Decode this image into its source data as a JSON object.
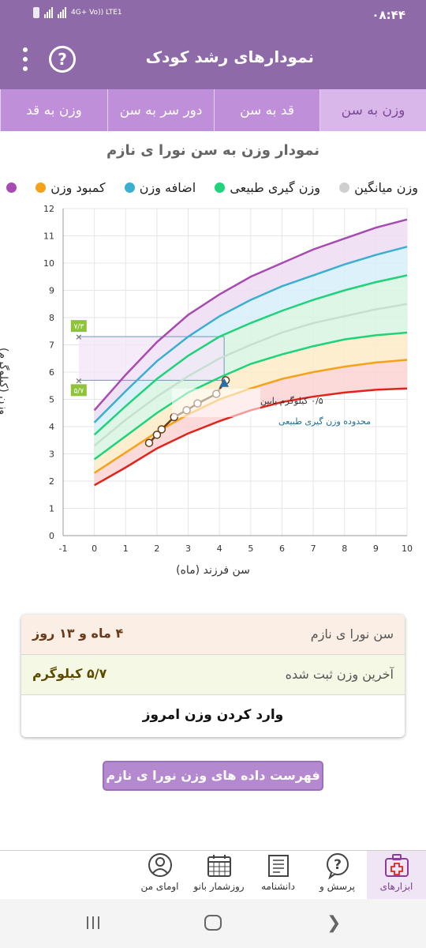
{
  "status": {
    "time": "۰۸:۴۴",
    "network": "4G+ Vo)) LTE1"
  },
  "toolbar": {
    "title": "نمودارهای رشد کودک"
  },
  "tabs": [
    {
      "label": "وزن به سن",
      "active": true
    },
    {
      "label": "قد به سن",
      "active": false
    },
    {
      "label": "دور سر به سن",
      "active": false
    },
    {
      "label": "وزن به قد",
      "active": false
    }
  ],
  "chart_title": "نمودار وزن به سن نورا ی نازم",
  "legend": [
    {
      "label": "کمبود وزن",
      "color": "#f5a21b"
    },
    {
      "label": "اضافه وزن",
      "color": "#3aafd0"
    },
    {
      "label": "وزن گیری طبیعی",
      "color": "#1ed37a"
    },
    {
      "label": "وزن میانگین",
      "color": "#cfcfcf"
    }
  ],
  "legend_extra": {
    "label": "",
    "color": "#a64bb0"
  },
  "chart_data": {
    "type": "line",
    "xlabel": "سن فرزند (ماه)",
    "ylabel": "وزن (کیلوگرم)",
    "xlim": [
      -1,
      10
    ],
    "ylim": [
      0,
      12
    ],
    "x_ticks": [
      "-1",
      "0",
      "1",
      "2",
      "3",
      "4",
      "5",
      "6",
      "7",
      "8",
      "9",
      "10"
    ],
    "y_ticks": [
      "0",
      "1",
      "2",
      "3",
      "4",
      "5",
      "6",
      "7",
      "8",
      "9",
      "10",
      "11",
      "12"
    ],
    "x": [
      0,
      1,
      2,
      3,
      4,
      5,
      6,
      7,
      8,
      9,
      10
    ],
    "series": [
      {
        "values": [
          1.85,
          2.5,
          3.2,
          3.75,
          4.2,
          4.6,
          4.9,
          5.1,
          5.25,
          5.35,
          5.4
        ],
        "color": "#e2231a"
      },
      {
        "values": [
          2.3,
          3.05,
          3.8,
          4.45,
          5.0,
          5.4,
          5.75,
          6.0,
          6.2,
          6.35,
          6.45
        ],
        "color": "#f5a21b"
      },
      {
        "values": [
          2.8,
          3.65,
          4.5,
          5.25,
          5.8,
          6.3,
          6.65,
          6.95,
          7.2,
          7.35,
          7.45
        ],
        "color": "#1ed37a"
      },
      {
        "values": [
          3.3,
          4.25,
          5.1,
          5.85,
          6.5,
          7.0,
          7.45,
          7.8,
          8.05,
          8.3,
          8.5
        ],
        "color": "#c5e0d0"
      },
      {
        "values": [
          3.7,
          4.75,
          5.75,
          6.6,
          7.3,
          7.8,
          8.25,
          8.65,
          9.0,
          9.3,
          9.55
        ],
        "color": "#1ed37a"
      },
      {
        "values": [
          4.15,
          5.3,
          6.4,
          7.3,
          8.05,
          8.65,
          9.15,
          9.55,
          9.95,
          10.3,
          10.6
        ],
        "color": "#3aafd0"
      },
      {
        "values": [
          4.6,
          5.9,
          7.1,
          8.1,
          8.85,
          9.5,
          10.0,
          10.5,
          10.9,
          11.3,
          11.6
        ],
        "color": "#a64bb0"
      }
    ],
    "measurements": {
      "x": [
        1.75,
        2.0,
        2.15,
        2.55,
        2.95,
        3.3,
        3.9,
        4.2
      ],
      "y": [
        3.4,
        3.7,
        3.9,
        4.35,
        4.6,
        4.85,
        5.2,
        5.7
      ]
    },
    "current_point": {
      "x": 4.15,
      "y": 5.6
    },
    "range_marks": [
      {
        "y": 7.3,
        "label": "۷/۳"
      },
      {
        "y": 5.7,
        "label": "۵/۷"
      }
    ],
    "annotation_lines": [
      "۰/۵ کیلوگرم پایین",
      "محدوده وزن گیری طبیعی"
    ]
  },
  "info": {
    "age_label": "سن نورا ی نازم",
    "age_value": "۴ ماه و ۱۳ روز",
    "weight_label": "آخرین وزن ثبت شده",
    "weight_value": "۵/۷ کیلوگرم",
    "enter_label": "وارد کردن وزن امروز"
  },
  "list_button": "فهرست داده های وزن نورا ی نازم",
  "bottom_nav": [
    {
      "label": "ابزارهای",
      "icon": "medical-kit-icon",
      "active": true
    },
    {
      "label": "پرسش و",
      "icon": "question-bubble-icon",
      "active": false
    },
    {
      "label": "دانشنامه",
      "icon": "book-icon",
      "active": false
    },
    {
      "label": "روزشمار بانو",
      "icon": "calendar-icon",
      "active": false
    },
    {
      "label": "اومای من",
      "icon": "profile-icon",
      "active": false
    }
  ]
}
